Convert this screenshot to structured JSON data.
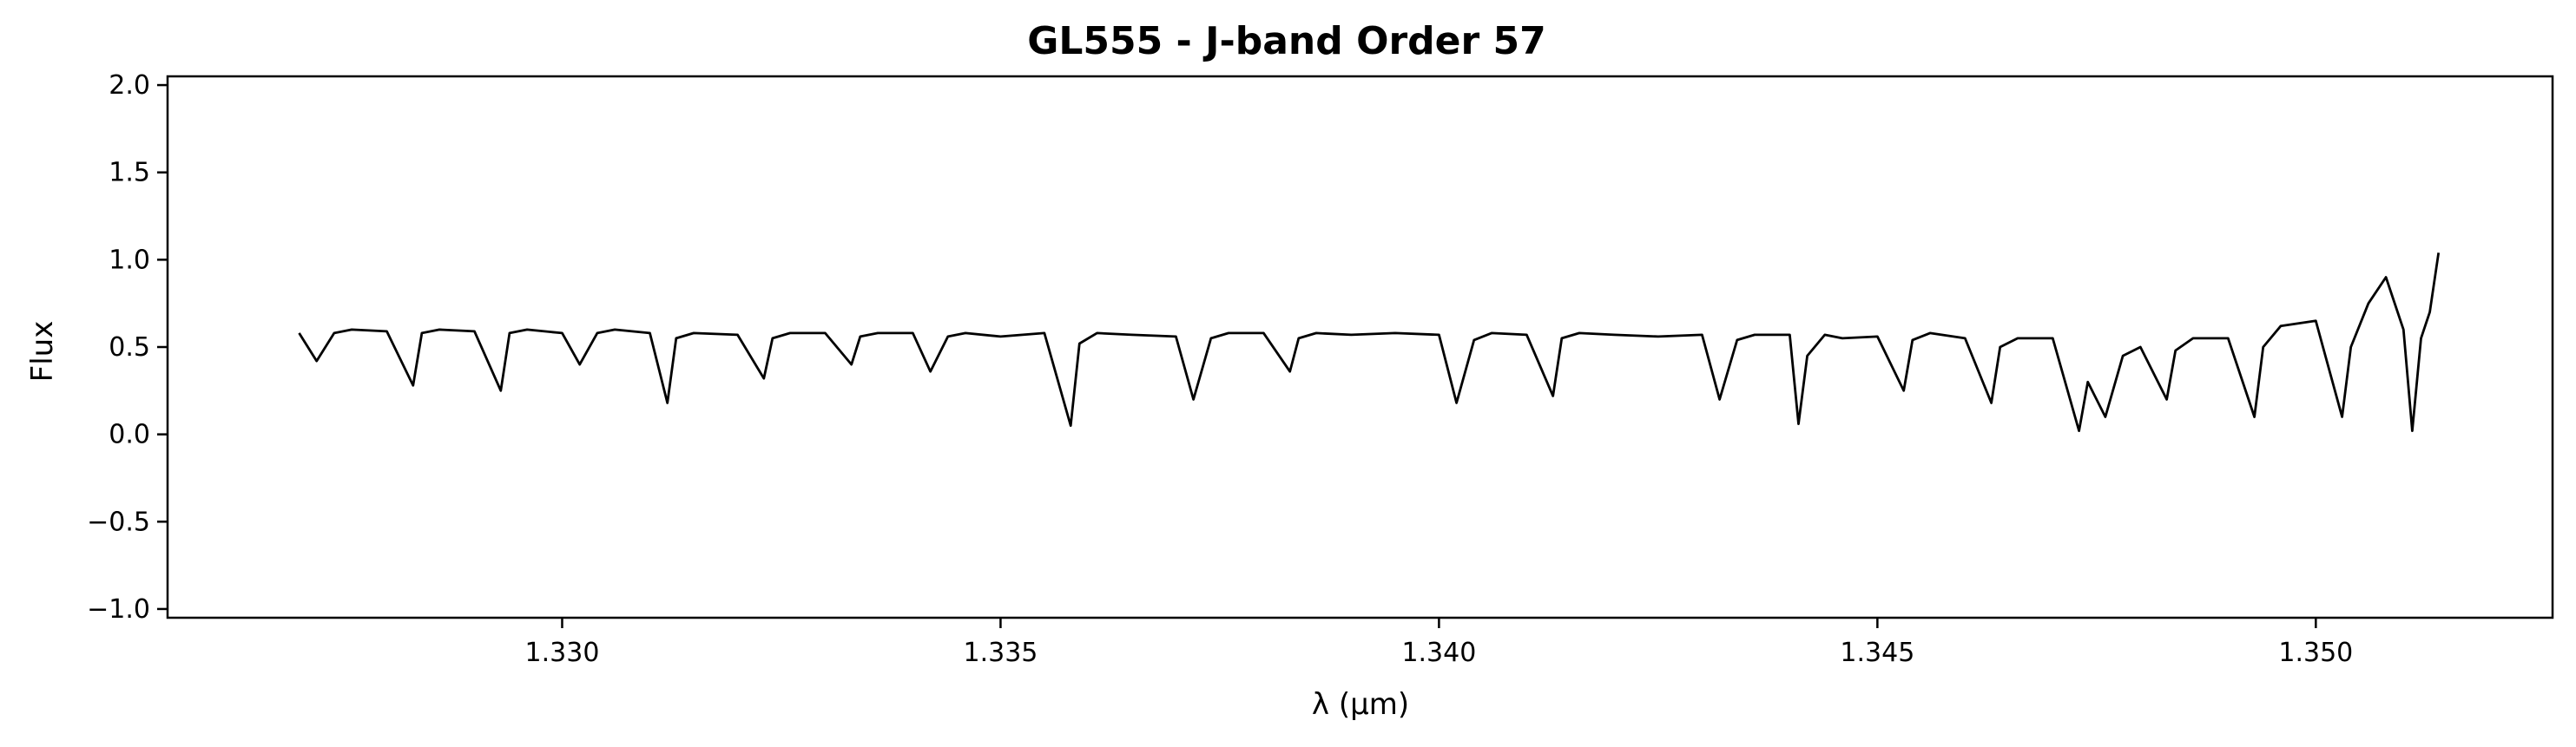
{
  "chart_data": {
    "type": "line",
    "title": "GL555 - J-band Order 57",
    "xlabel": "λ (μm)",
    "ylabel": "Flux",
    "xlim": [
      1.3255,
      1.3527
    ],
    "ylim": [
      -1.05,
      2.05
    ],
    "xticks": [
      1.33,
      1.335,
      1.34,
      1.345,
      1.35
    ],
    "xtick_labels": [
      "1.330",
      "1.335",
      "1.340",
      "1.345",
      "1.350"
    ],
    "yticks": [
      -1.0,
      -0.5,
      0.0,
      0.5,
      1.0,
      1.5,
      2.0
    ],
    "ytick_labels": [
      "−1.0",
      "−0.5",
      "0.0",
      "0.5",
      "1.0",
      "1.5",
      "2.0"
    ],
    "grid": false,
    "line_color": "#000000",
    "series": [
      {
        "x": [
          1.327,
          1.3272,
          1.3274,
          1.3276,
          1.328,
          1.3283,
          1.3284,
          1.3286,
          1.329,
          1.3293,
          1.3294,
          1.3296,
          1.33,
          1.3302,
          1.3304,
          1.3306,
          1.331,
          1.3312,
          1.3313,
          1.3315,
          1.332,
          1.3323,
          1.3324,
          1.3326,
          1.333,
          1.3333,
          1.3334,
          1.3336,
          1.334,
          1.3342,
          1.3344,
          1.3346,
          1.335,
          1.3355,
          1.3358,
          1.3359,
          1.3361,
          1.3365,
          1.337,
          1.3372,
          1.3374,
          1.3376,
          1.338,
          1.3383,
          1.3384,
          1.3386,
          1.339,
          1.3395,
          1.34,
          1.3402,
          1.3404,
          1.3406,
          1.341,
          1.3413,
          1.3414,
          1.3416,
          1.342,
          1.3425,
          1.343,
          1.3432,
          1.3434,
          1.3436,
          1.344,
          1.3441,
          1.3442,
          1.3444,
          1.3446,
          1.345,
          1.3453,
          1.3454,
          1.3456,
          1.346,
          1.3463,
          1.3464,
          1.3466,
          1.347,
          1.3473,
          1.3474,
          1.3476,
          1.3478,
          1.348,
          1.3483,
          1.3484,
          1.3486,
          1.349,
          1.3493,
          1.3494,
          1.3496,
          1.35,
          1.3503,
          1.3504,
          1.3506,
          1.3508,
          1.351,
          1.3511,
          1.3512,
          1.3513,
          1.3514
        ],
        "y": [
          0.58,
          0.42,
          0.58,
          0.6,
          0.59,
          0.28,
          0.58,
          0.6,
          0.59,
          0.25,
          0.58,
          0.6,
          0.58,
          0.4,
          0.58,
          0.6,
          0.58,
          0.18,
          0.55,
          0.58,
          0.57,
          0.32,
          0.55,
          0.58,
          0.58,
          0.4,
          0.56,
          0.58,
          0.58,
          0.36,
          0.56,
          0.58,
          0.56,
          0.58,
          0.05,
          0.52,
          0.58,
          0.57,
          0.56,
          0.2,
          0.55,
          0.58,
          0.58,
          0.36,
          0.55,
          0.58,
          0.57,
          0.58,
          0.57,
          0.18,
          0.54,
          0.58,
          0.57,
          0.22,
          0.55,
          0.58,
          0.57,
          0.56,
          0.57,
          0.2,
          0.54,
          0.57,
          0.57,
          0.06,
          0.45,
          0.57,
          0.55,
          0.56,
          0.25,
          0.54,
          0.58,
          0.55,
          0.18,
          0.5,
          0.55,
          0.55,
          0.02,
          0.3,
          0.1,
          0.45,
          0.5,
          0.2,
          0.48,
          0.55,
          0.55,
          0.1,
          0.5,
          0.62,
          0.65,
          0.1,
          0.5,
          0.75,
          0.9,
          0.6,
          0.02,
          0.55,
          0.7,
          1.04
        ]
      }
    ]
  }
}
